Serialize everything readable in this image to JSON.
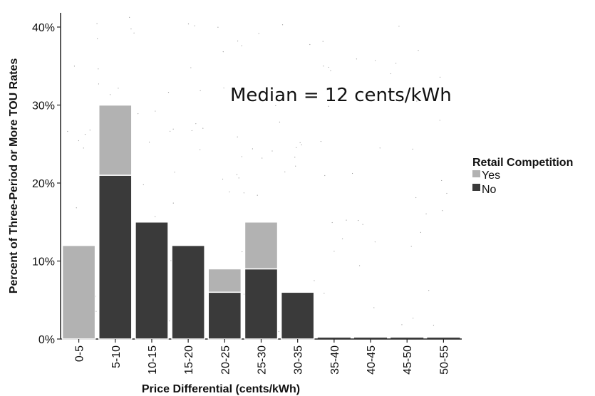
{
  "chart_data": {
    "type": "bar",
    "stacked": true,
    "categories": [
      "0-5",
      "5-10",
      "10-15",
      "15-20",
      "20-25",
      "25-30",
      "30-35",
      "35-40",
      "40-45",
      "45-50",
      "50-55"
    ],
    "series": [
      {
        "name": "No",
        "color": "#3a3a3a",
        "values": [
          0,
          21,
          15,
          12,
          6,
          9,
          6,
          0,
          0,
          0,
          0
        ]
      },
      {
        "name": "Yes",
        "color": "#b2b2b2",
        "values": [
          12,
          9,
          0,
          0,
          3,
          6,
          0,
          0,
          0,
          0,
          0
        ]
      }
    ],
    "xlabel": "Price Differential (cents/kWh)",
    "ylabel": "Percent of Three-Period or More TOU Rates",
    "ylim": [
      0,
      40
    ],
    "yticks": [
      0,
      10,
      20,
      30,
      40
    ],
    "ytick_labels": [
      "0%",
      "10%",
      "20%",
      "30%",
      "40%"
    ],
    "legend": {
      "title": "Retail Competition",
      "position": "right",
      "entries": [
        "Yes",
        "No"
      ]
    },
    "annotation": "Median = 12 cents/kWh",
    "grid": false
  }
}
